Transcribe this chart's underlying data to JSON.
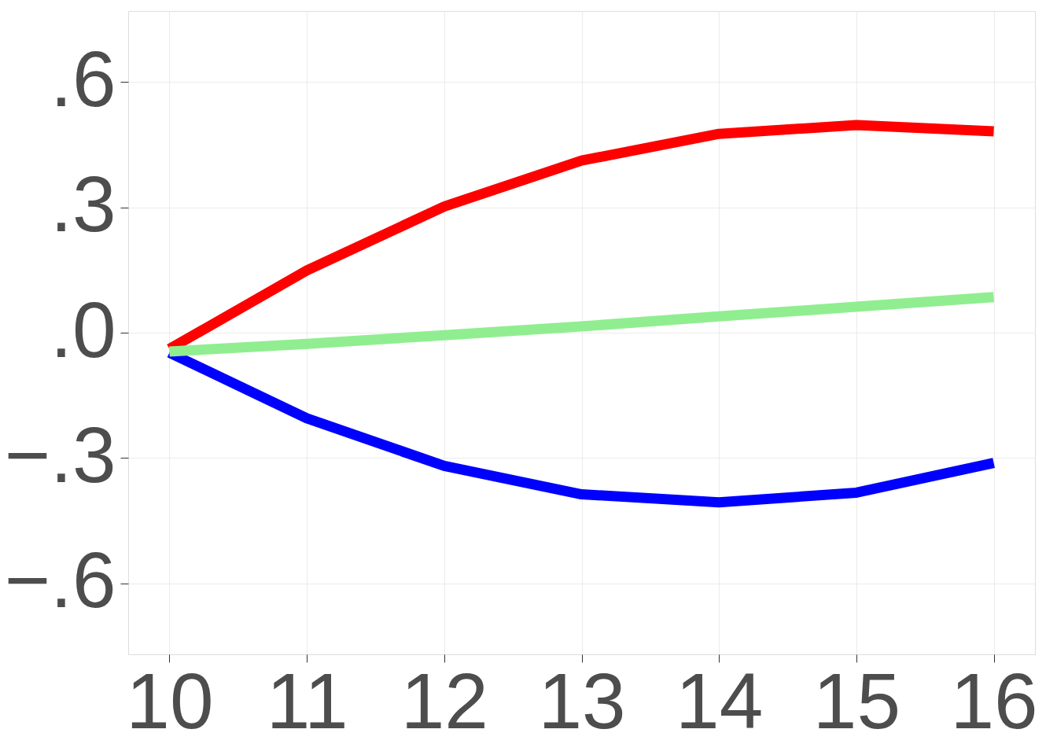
{
  "chart_data": {
    "type": "line",
    "x": [
      10,
      11,
      12,
      13,
      14,
      15,
      16
    ],
    "series": [
      {
        "color": "#ff0000",
        "values": [
          -0.039,
          0.149,
          0.302,
          0.412,
          0.476,
          0.497,
          0.482
        ]
      },
      {
        "color": "#0000ff",
        "values": [
          -0.048,
          -0.205,
          -0.319,
          -0.387,
          -0.406,
          -0.383,
          -0.312
        ]
      },
      {
        "color": "#90ee90",
        "values": [
          -0.045,
          -0.027,
          -0.006,
          0.015,
          0.039,
          0.062,
          0.085
        ]
      }
    ],
    "xlim": [
      9.7,
      16.3
    ],
    "xticks": [
      10,
      11,
      12,
      13,
      14,
      15,
      16
    ],
    "ylim": [
      -0.77,
      0.77
    ],
    "yticks": [
      {
        "value": -0.6,
        "label": "−.6"
      },
      {
        "value": -0.3,
        "label": "−.3"
      },
      {
        "value": 0,
        "label": ".0"
      },
      {
        "value": 0.3,
        "label": ".3"
      },
      {
        "value": 0.6,
        "label": ".6"
      }
    ],
    "grid": true,
    "marker": "none",
    "line_style": "solid"
  }
}
